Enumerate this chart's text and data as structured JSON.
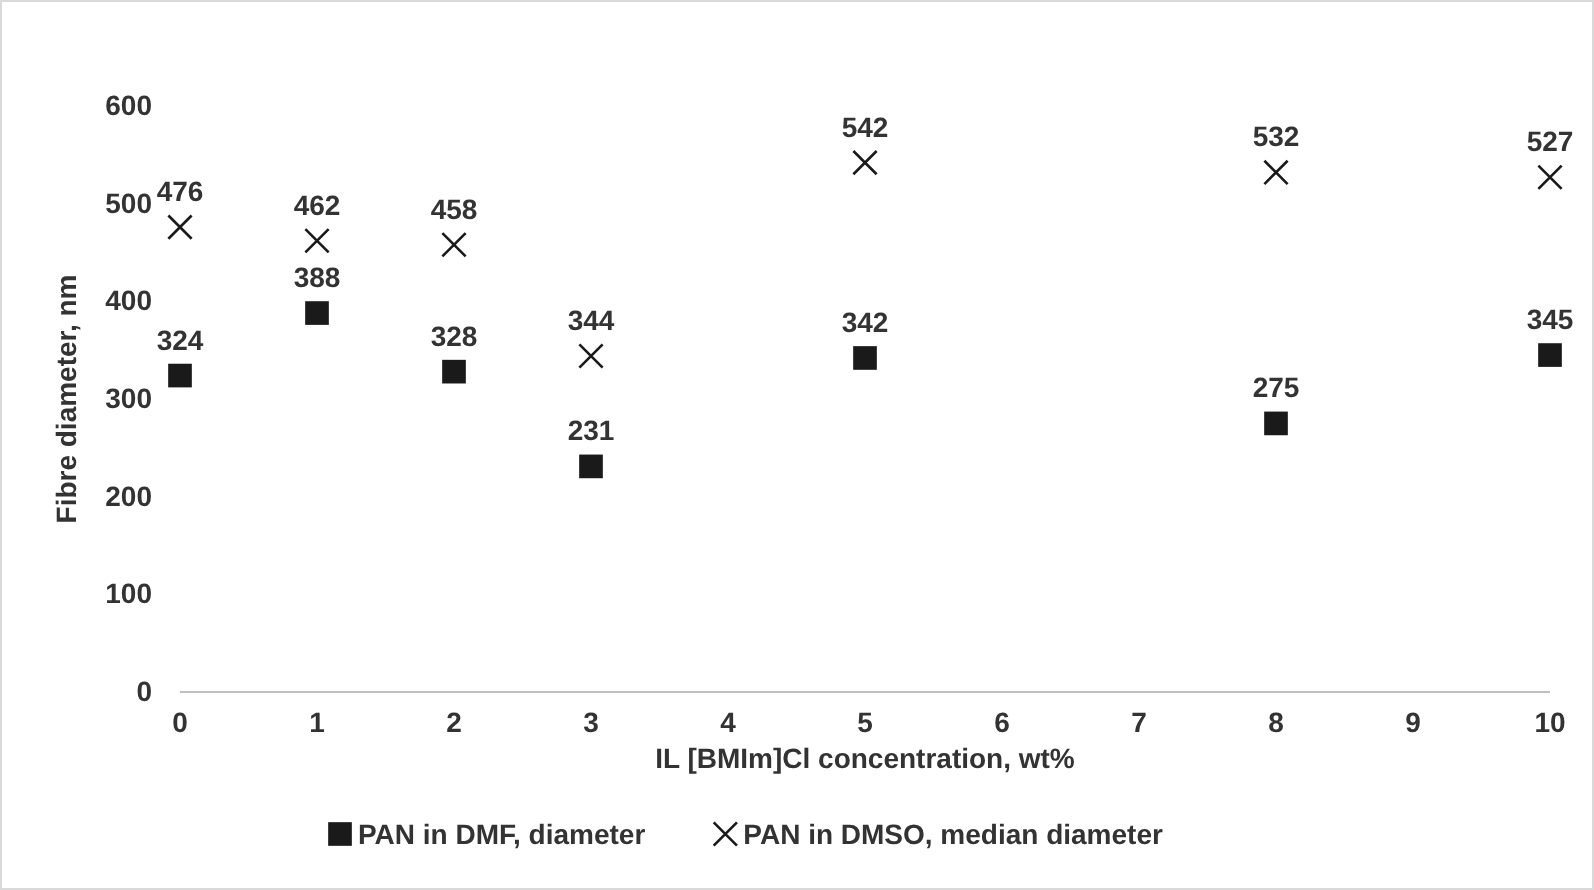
{
  "chart_data": {
    "type": "scatter",
    "xlabel": "IL [BMIm]Cl concentration, wt%",
    "ylabel": "Fibre diameter, nm",
    "x": [
      0,
      1,
      2,
      3,
      5,
      8,
      10
    ],
    "series": [
      {
        "name": "PAN in DMF, diameter",
        "color": "#1a1a1a",
        "marker": "square",
        "values": [
          324,
          388,
          328,
          231,
          342,
          275,
          345
        ]
      },
      {
        "name": "PAN in DMSO, median diameter",
        "color": "#1a1a1a",
        "marker": "cross",
        "values": [
          476,
          462,
          458,
          344,
          542,
          532,
          527
        ]
      }
    ],
    "xlim": [
      0,
      10
    ],
    "xticks": [
      0,
      1,
      2,
      3,
      4,
      5,
      6,
      7,
      8,
      9,
      10
    ],
    "ylim": [
      0,
      600
    ],
    "yticks": [
      0,
      100,
      200,
      300,
      400,
      500,
      600
    ],
    "data_labels": true,
    "legend": "bottom",
    "grid": false
  }
}
